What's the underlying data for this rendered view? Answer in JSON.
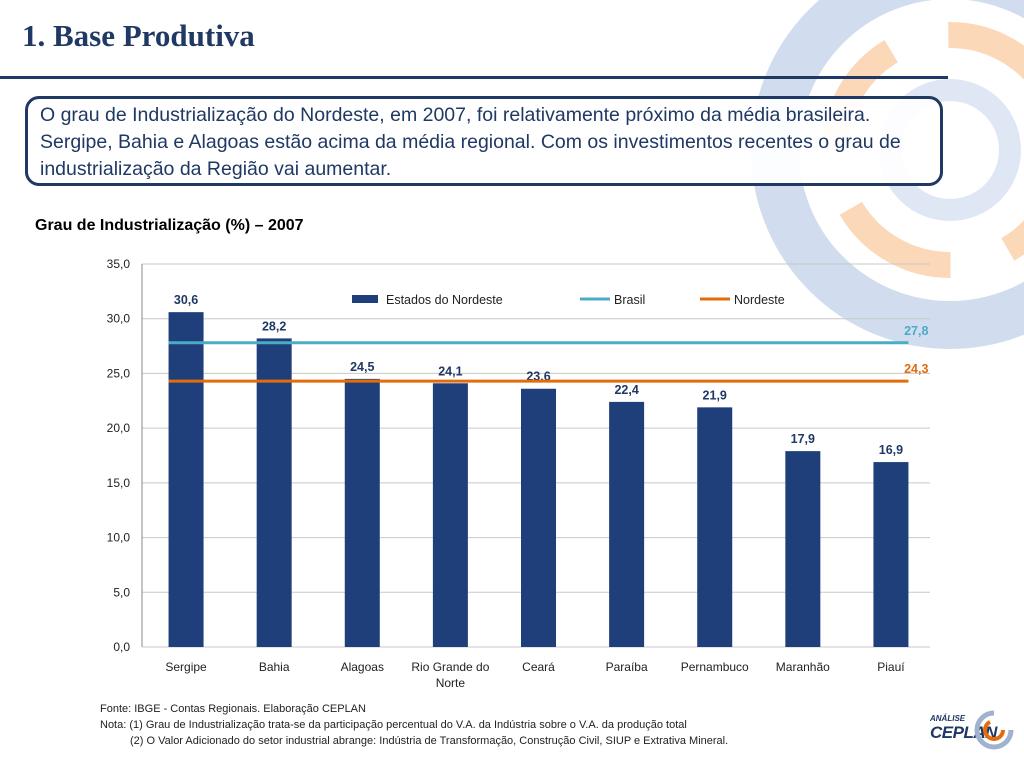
{
  "page": {
    "title": "1. Base Produtiva",
    "description": "O grau de Industrialização do Nordeste, em 2007, foi  relativamente próximo da média brasileira. Sergipe, Bahia e Alagoas estão acima da média regional. Com os investimentos recentes o grau de industrialização da Região vai aumentar.",
    "chart_heading": "Grau de Industrialização (%) – 2007",
    "footnotes": [
      "Fonte: IBGE - Contas Regionais. Elaboração CEPLAN",
      "Nota: (1) Grau de Industrialização  trata-se da participação  percentual do V.A. da Indústria sobre o V.A. da produção total",
      "(2) O Valor Adicionado do setor industrial abrange: Indústria de Transformação, Construção Civil, SIUP e Extrativa Mineral."
    ],
    "logo": {
      "small": "ANÁLISE",
      "big": "CEPLAN"
    }
  },
  "colors": {
    "bar": "#1f3f7a",
    "brasil": "#4bacc6",
    "nordeste": "#e46c0a",
    "title": "#1f3864"
  },
  "chart_data": {
    "type": "bar",
    "title": "Grau de Industrialização (%) – 2007",
    "categories": [
      "Sergipe",
      "Bahia",
      "Alagoas",
      "Rio Grande do Norte",
      "Ceará",
      "Paraíba",
      "Pernambuco",
      "Maranhão",
      "Piauí"
    ],
    "category_labels": [
      [
        "Sergipe"
      ],
      [
        "Bahia"
      ],
      [
        "Alagoas"
      ],
      [
        "Rio Grande do",
        "Norte"
      ],
      [
        "Ceará"
      ],
      [
        "Paraíba"
      ],
      [
        "Pernambuco"
      ],
      [
        "Maranhão"
      ],
      [
        "Piauí"
      ]
    ],
    "series": [
      {
        "name": "Estados  do Nordeste",
        "type": "bar",
        "values": [
          30.6,
          28.2,
          24.5,
          24.1,
          23.6,
          22.4,
          21.9,
          17.9,
          16.9
        ]
      },
      {
        "name": "Brasil",
        "type": "line",
        "value": 27.8
      },
      {
        "name": "Nordeste",
        "type": "line",
        "value": 24.3
      }
    ],
    "value_labels": [
      "30,6",
      "28,2",
      "24,5",
      "24,1",
      "23,6",
      "22,4",
      "21,9",
      "17,9",
      "16,9"
    ],
    "line_labels": {
      "Brasil": "27,8",
      "Nordeste": "24,3"
    },
    "yticks": [
      0,
      5,
      10,
      15,
      20,
      25,
      30,
      35
    ],
    "ytick_labels": [
      "0,0",
      "5,0",
      "10,0",
      "15,0",
      "20,0",
      "25,0",
      "30,0",
      "35,0"
    ],
    "ylim": [
      0,
      35
    ],
    "xlabel": "",
    "ylabel": "",
    "grid": true,
    "legend": "top"
  }
}
